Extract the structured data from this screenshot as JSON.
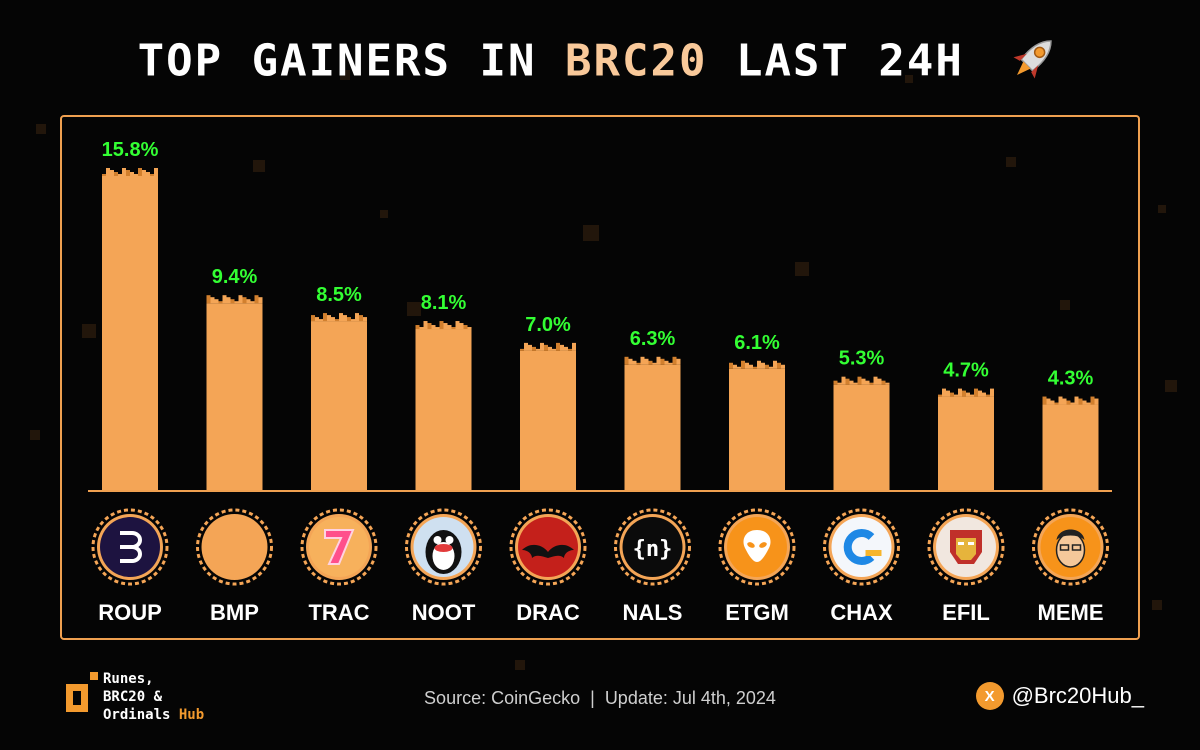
{
  "header": {
    "title_pre": "TOP GAINERS IN",
    "title_accent": "BRC20",
    "title_post": "LAST 24H"
  },
  "colors": {
    "bar": "#f4a556",
    "bar_dark": "#d2802e",
    "value_label": "#33ff33",
    "panel_border": "#f0a050",
    "accent": "#f9c99a"
  },
  "chart_data": {
    "type": "bar",
    "title": "TOP GAINERS IN BRC20 LAST 24H",
    "categories": [
      "ROUP",
      "BMP",
      "TRAC",
      "NOOT",
      "DRAC",
      "NALS",
      "ETGM",
      "CHAX",
      "EFIL",
      "MEME"
    ],
    "values": [
      15.8,
      9.4,
      8.5,
      8.1,
      7.0,
      6.3,
      6.1,
      5.3,
      4.7,
      4.3
    ],
    "labels": [
      "15.8%",
      "9.4%",
      "8.5%",
      "8.1%",
      "7.0%",
      "6.3%",
      "6.1%",
      "5.3%",
      "4.7%",
      "4.3%"
    ],
    "unit": "%",
    "xlabel": "",
    "ylabel": "",
    "ylim": [
      0,
      15.8
    ],
    "grid": false
  },
  "tokens": [
    {
      "symbol": "ROUP",
      "icon": "roup-logo-icon"
    },
    {
      "symbol": "BMP",
      "icon": "bmp-logo-icon"
    },
    {
      "symbol": "TRAC",
      "icon": "trac-logo-icon"
    },
    {
      "symbol": "NOOT",
      "icon": "noot-penguin-icon"
    },
    {
      "symbol": "DRAC",
      "icon": "drac-bat-icon"
    },
    {
      "symbol": "NALS",
      "icon": "nals-brackets-icon"
    },
    {
      "symbol": "ETGM",
      "icon": "etgm-alien-icon"
    },
    {
      "symbol": "CHAX",
      "icon": "chax-logo-icon"
    },
    {
      "symbol": "EFIL",
      "icon": "efil-ironman-icon"
    },
    {
      "symbol": "MEME",
      "icon": "meme-face-icon"
    }
  ],
  "footer": {
    "brand_line1": "Runes,",
    "brand_line2": "BRC20 &",
    "brand_line3": "Ordinals",
    "brand_hub": "Hub",
    "source": "Source: CoinGecko",
    "separator": "|",
    "update": "Update: Jul 4th, 2024",
    "x_symbol": "X",
    "handle": "@Brc20Hub_"
  }
}
